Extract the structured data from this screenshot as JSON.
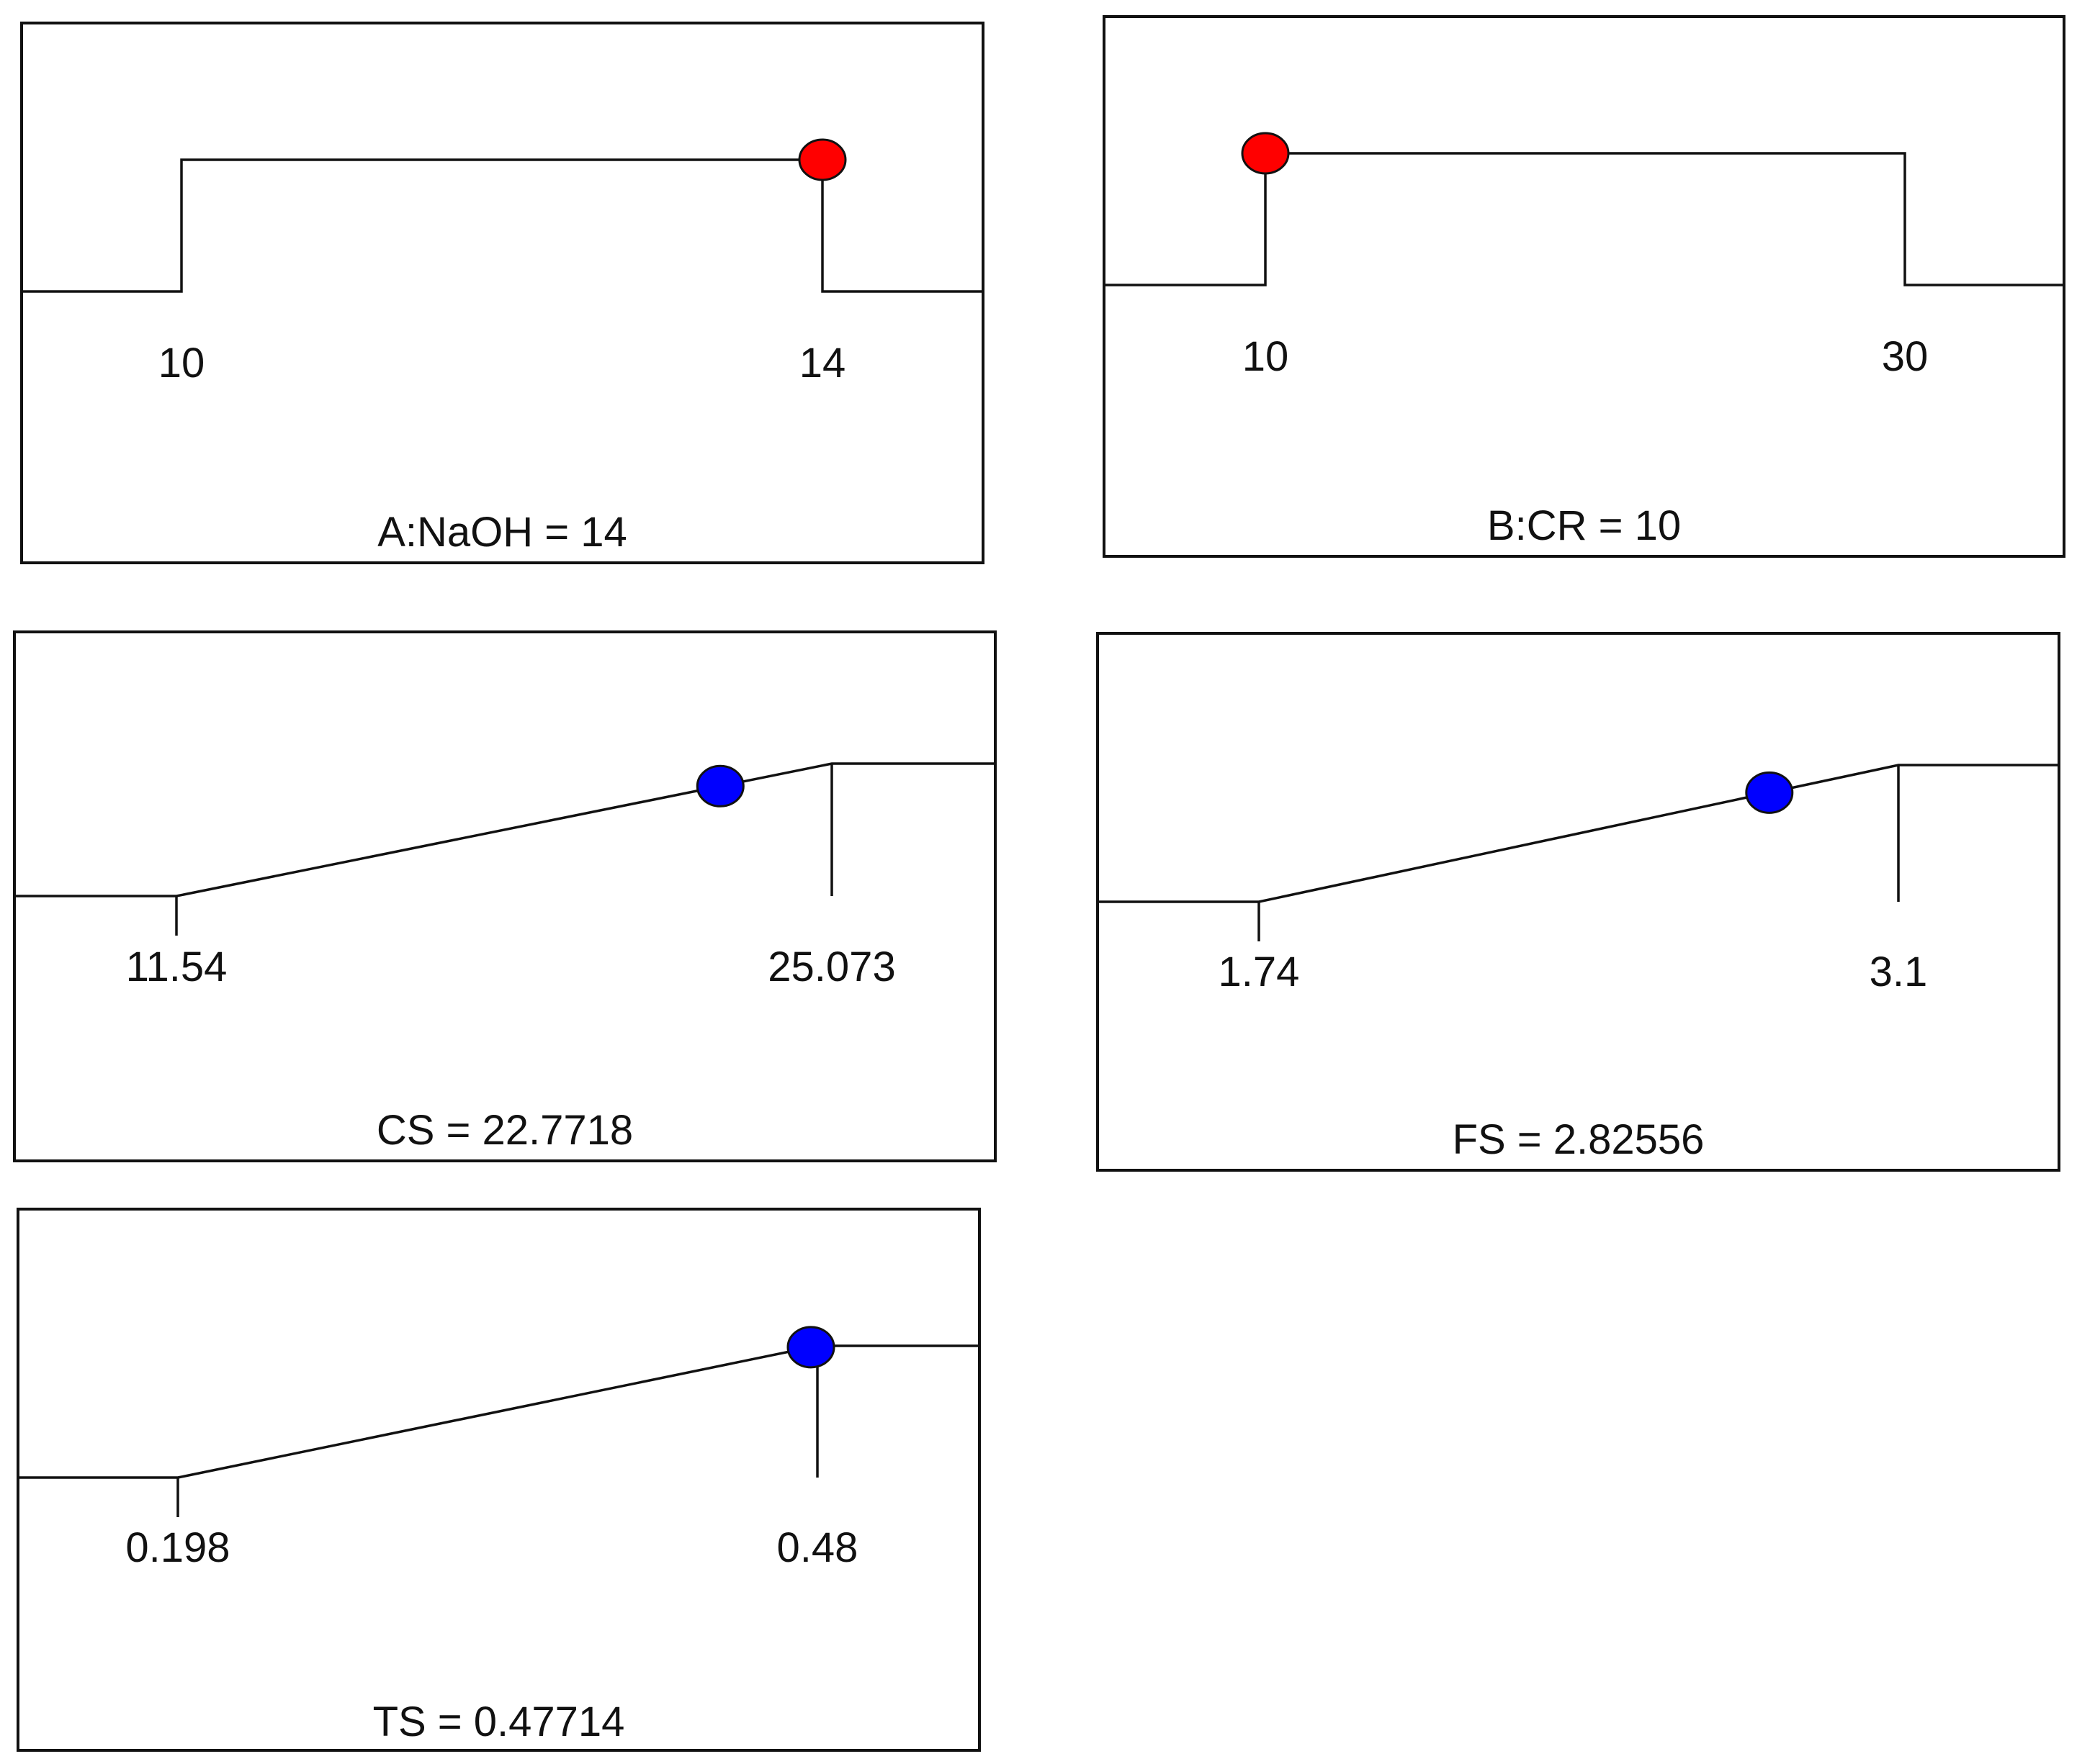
{
  "chart_data": [
    {
      "type": "desirability-ramp",
      "label": "A:NaOH = 14",
      "low": 10,
      "high": 14,
      "low_label": "10",
      "high_label": "14",
      "value": 14,
      "goal": "range",
      "marker_color": "#ff0000"
    },
    {
      "type": "desirability-ramp",
      "label": "B:CR = 10",
      "low": 10,
      "high": 30,
      "low_label": "10",
      "high_label": "30",
      "value": 10,
      "goal": "range",
      "marker_color": "#ff0000"
    },
    {
      "type": "desirability-ramp",
      "label": "CS = 22.7718",
      "low": 11.54,
      "high": 25.073,
      "low_label": "11.54",
      "high_label": "25.073",
      "value": 22.7718,
      "goal": "maximize",
      "marker_color": "#0000ff"
    },
    {
      "type": "desirability-ramp",
      "label": "FS = 2.82556",
      "low": 1.74,
      "high": 3.1,
      "low_label": "1.74",
      "high_label": "3.1",
      "value": 2.82556,
      "goal": "maximize",
      "marker_color": "#0000ff"
    },
    {
      "type": "desirability-ramp",
      "label": "TS = 0.47714",
      "low": 0.198,
      "high": 0.48,
      "low_label": "0.198",
      "high_label": "0.48",
      "value": 0.47714,
      "goal": "maximize",
      "marker_color": "#0000ff"
    }
  ]
}
